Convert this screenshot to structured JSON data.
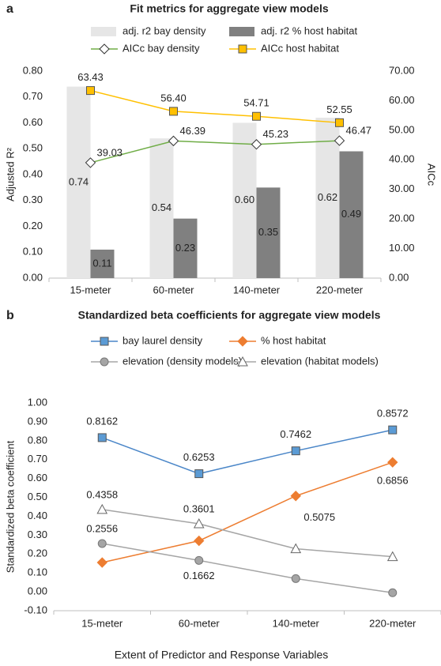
{
  "chart_data": [
    {
      "type": "bar",
      "panel": "a",
      "title": "Fit metrics for aggregate view models",
      "categories": [
        "15-meter",
        "60-meter",
        "140-meter",
        "220-meter"
      ],
      "ylabel": "Adjusted R²",
      "y2label": "AICc",
      "ylim": [
        0,
        0.8
      ],
      "yticks": [
        {
          "value": 0,
          "label": "0.00"
        },
        {
          "value": 0.1,
          "label": "0.10"
        },
        {
          "value": 0.2,
          "label": "0.20"
        },
        {
          "value": 0.3,
          "label": "0.30"
        },
        {
          "value": 0.4,
          "label": "0.40"
        },
        {
          "value": 0.5,
          "label": "0.50"
        },
        {
          "value": 0.6,
          "label": "0.60"
        },
        {
          "value": 0.7,
          "label": "0.70"
        },
        {
          "value": 0.8,
          "label": "0.80"
        }
      ],
      "y2lim": [
        0,
        70
      ],
      "y2ticks": [
        {
          "value": 0,
          "label": "0.00"
        },
        {
          "value": 10,
          "label": "10.00"
        },
        {
          "value": 20,
          "label": "20.00"
        },
        {
          "value": 30,
          "label": "30.00"
        },
        {
          "value": 40,
          "label": "40.00"
        },
        {
          "value": 50,
          "label": "50.00"
        },
        {
          "value": 60,
          "label": "60.00"
        },
        {
          "value": 70,
          "label": "70.00"
        }
      ],
      "grid": false,
      "series": [
        {
          "name": "adj. r2 bay density",
          "type": "bar",
          "color": "#e6e6e6",
          "values": [
            0.74,
            0.54,
            0.6,
            0.62
          ],
          "value_labels": [
            "0.74",
            "0.54",
            "0.60",
            "0.62"
          ]
        },
        {
          "name": "adj. r2 % host habitat",
          "type": "bar",
          "color": "#808080",
          "values": [
            0.11,
            0.23,
            0.35,
            0.49
          ],
          "value_labels": [
            "0.11",
            "0.23",
            "0.35",
            "0.49"
          ]
        },
        {
          "name": "AICc bay density",
          "type": "line",
          "axis": "y2",
          "color": "#70ad47",
          "marker": "diamond",
          "marker_fill": "#ffffff",
          "values": [
            39.03,
            46.39,
            45.23,
            46.47
          ],
          "value_labels": [
            "39.03",
            "46.39",
            "45.23",
            "46.47"
          ]
        },
        {
          "name": "AICc host habitat",
          "type": "line",
          "axis": "y2",
          "color": "#ffc000",
          "marker": "square",
          "marker_fill": "#ffc000",
          "values": [
            63.43,
            56.4,
            54.71,
            52.55
          ],
          "value_labels": [
            "63.43",
            "56.40",
            "54.71",
            "52.55"
          ]
        }
      ]
    },
    {
      "type": "line",
      "panel": "b",
      "title": "Standardized beta coefficients for aggregate view models",
      "categories": [
        "15-meter",
        "60-meter",
        "140-meter",
        "220-meter"
      ],
      "xlabel": "Extent of Predictor and Response Variables",
      "ylabel": "Standardized beta coefficient",
      "ylim": [
        -0.1,
        1.0
      ],
      "yticks": [
        {
          "value": -0.1,
          "label": "-0.10"
        },
        {
          "value": 0,
          "label": "0.00"
        },
        {
          "value": 0.1,
          "label": "0.10"
        },
        {
          "value": 0.2,
          "label": "0.20"
        },
        {
          "value": 0.3,
          "label": "0.30"
        },
        {
          "value": 0.4,
          "label": "0.40"
        },
        {
          "value": 0.5,
          "label": "0.50"
        },
        {
          "value": 0.6,
          "label": "0.60"
        },
        {
          "value": 0.7,
          "label": "0.70"
        },
        {
          "value": 0.8,
          "label": "0.80"
        },
        {
          "value": 0.9,
          "label": "0.90"
        },
        {
          "value": 1.0,
          "label": "1.00"
        }
      ],
      "grid": false,
      "series": [
        {
          "name": "bay laurel density",
          "type": "line",
          "color": "#4a86c8",
          "marker": "square",
          "marker_fill": "#5b9bd5",
          "values": [
            0.8162,
            0.6253,
            0.7462,
            0.8572
          ],
          "value_labels": [
            "0.8162",
            "0.6253",
            "0.7462",
            "0.8572"
          ]
        },
        {
          "name": "% host habitat",
          "type": "line",
          "color": "#ed7d31",
          "marker": "diamond",
          "marker_fill": "#ed7d31",
          "values": [
            0.155,
            0.27,
            0.5075,
            0.6856
          ],
          "value_labels": [
            null,
            null,
            "0.5075",
            "0.6856"
          ]
        },
        {
          "name": "elevation (density models)",
          "type": "line",
          "color": "#a5a5a5",
          "marker": "circle",
          "marker_fill": "#a5a5a5",
          "values": [
            0.2556,
            0.1662,
            0.07,
            -0.005
          ],
          "value_labels": [
            "0.2556",
            "0.1662",
            null,
            null
          ]
        },
        {
          "name": "elevation (habitat models)",
          "type": "line",
          "color": "#a5a5a5",
          "marker": "triangle",
          "marker_fill": "#ffffff",
          "values": [
            0.4358,
            0.3601,
            0.228,
            0.186
          ],
          "value_labels": [
            "0.4358",
            "0.3601",
            null,
            null
          ]
        }
      ]
    }
  ]
}
